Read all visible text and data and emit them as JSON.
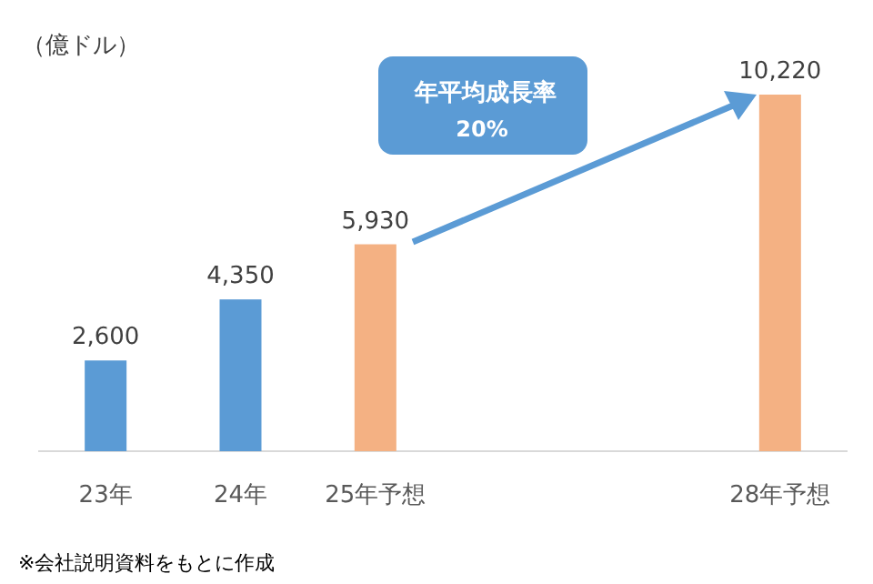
{
  "chart_data": {
    "type": "bar",
    "ylabel": "（億ドル）",
    "categories": [
      "23年",
      "24年",
      "25年予想",
      null,
      null,
      "28年予想"
    ],
    "values": [
      2600,
      4350,
      5930,
      null,
      null,
      10220
    ],
    "colors": [
      "#5b9bd5",
      "#5b9bd5",
      "#f4b183",
      null,
      null,
      "#f4b183"
    ],
    "value_labels": [
      "2,600",
      "4,350",
      "5,930",
      null,
      null,
      "10,220"
    ],
    "annotations": [
      "年平均成長率",
      "20%",
      "※会社説明資料をもとに作成"
    ]
  }
}
